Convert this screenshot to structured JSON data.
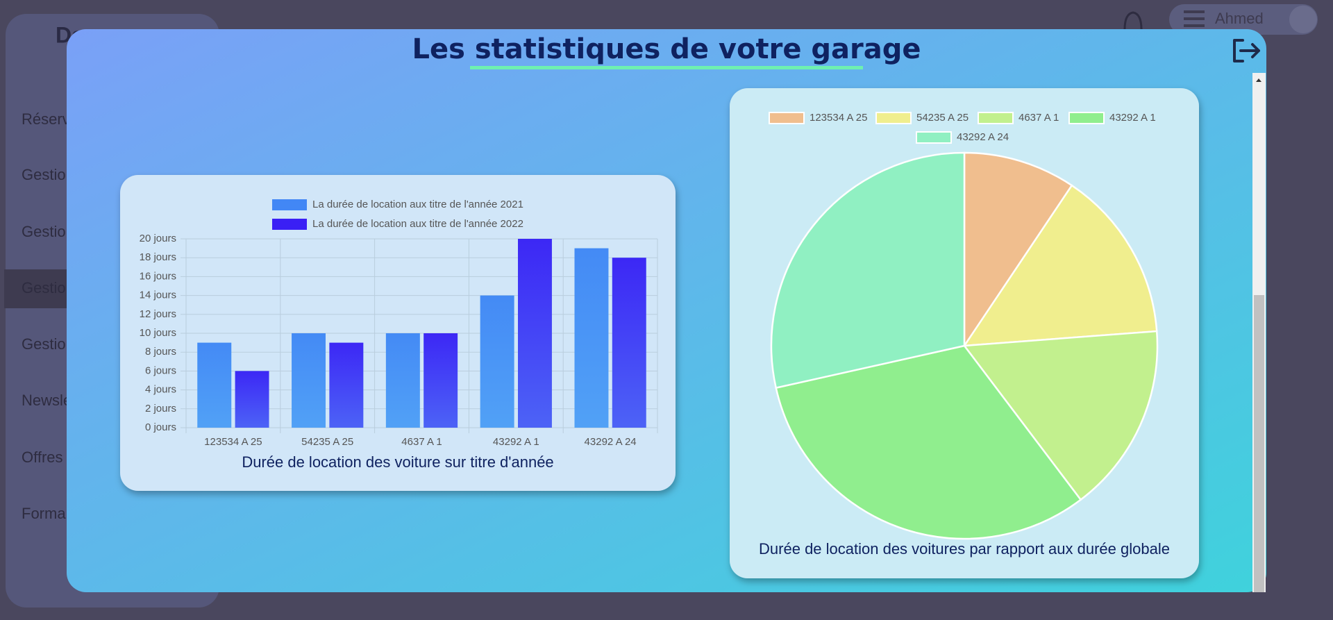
{
  "header": {
    "user": "Ahmed",
    "brand": "Da"
  },
  "sidebar": {
    "items": [
      "Réserv",
      "Gestio",
      "Gestio",
      "Gestio",
      "Gestio",
      "Newsle",
      "Offres",
      "Forma"
    ]
  },
  "modal": {
    "title": "Les statistiques de votre garage"
  },
  "chart_data": [
    {
      "type": "bar",
      "title": "Durée de location des voiture sur titre d'année",
      "categories": [
        "123534 A 25",
        "54235 A 25",
        "4637 A 1",
        "43292 A 1",
        "43292 A 24"
      ],
      "series": [
        {
          "name": "La durée de location aux titre de l'année 2021",
          "color": "#4287f5",
          "values": [
            9,
            10,
            10,
            14,
            19
          ]
        },
        {
          "name": "La durée de location aux titre de l'année 2022",
          "color": "#3a1ff5",
          "values": [
            6,
            9,
            10,
            20,
            18
          ]
        }
      ],
      "ylim": [
        0,
        20
      ],
      "yticks": [
        {
          "value": 0,
          "label": "0 jours"
        },
        {
          "value": 2,
          "label": "2 jours"
        },
        {
          "value": 4,
          "label": "4 jours"
        },
        {
          "value": 6,
          "label": "6 jours"
        },
        {
          "value": 8,
          "label": "8 jours"
        },
        {
          "value": 10,
          "label": "10 jours"
        },
        {
          "value": 12,
          "label": "12 jours"
        },
        {
          "value": 14,
          "label": "14 jours"
        },
        {
          "value": 16,
          "label": "16 jours"
        },
        {
          "value": 18,
          "label": "18 jours"
        },
        {
          "value": 20,
          "label": "20 jours"
        }
      ],
      "grid": true
    },
    {
      "type": "pie",
      "title": "Durée de location des voitures par rapport aux durée globale",
      "categories": [
        "123534 A 25",
        "54235 A 25",
        "4637 A 1",
        "43292 A 1",
        "43292 A 24"
      ],
      "values": [
        9.4,
        14.4,
        15.9,
        31.8,
        28.5
      ],
      "colors": [
        "#f0be8e",
        "#f0ee8e",
        "#c2f08e",
        "#90ee8e",
        "#90f0c2"
      ]
    }
  ]
}
